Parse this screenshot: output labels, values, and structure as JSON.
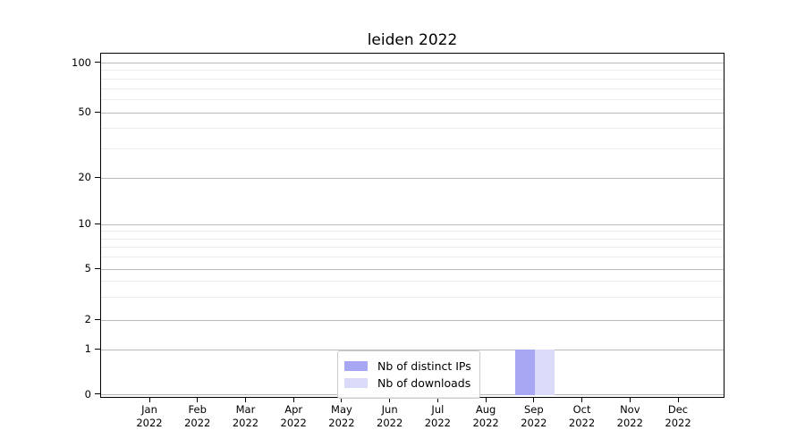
{
  "chart_data": {
    "type": "bar",
    "title": "leiden 2022",
    "categories": [
      "Jan",
      "Feb",
      "Mar",
      "Apr",
      "May",
      "Jun",
      "Jul",
      "Aug",
      "Sep",
      "Oct",
      "Nov",
      "Dec"
    ],
    "category_year_line": "2022",
    "series": [
      {
        "name": "Nb of distinct IPs",
        "color": "#a7a7f3",
        "values": [
          0,
          0,
          0,
          0,
          0,
          0,
          0,
          0,
          1,
          0,
          0,
          0
        ]
      },
      {
        "name": "Nb of downloads",
        "color": "#dadaf9",
        "values": [
          0,
          0,
          0,
          0,
          0,
          0,
          0,
          0,
          1,
          0,
          0,
          0
        ]
      }
    ],
    "yticks": [
      0,
      1,
      2,
      5,
      10,
      20,
      50,
      100
    ],
    "yscale": "symlog",
    "ylim": [
      0,
      110
    ],
    "xlabel": "",
    "ylabel": "",
    "grid": true,
    "legend_position": "lower-center"
  }
}
